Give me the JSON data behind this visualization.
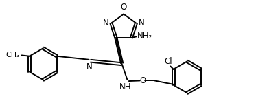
{
  "bg_color": "#ffffff",
  "line_color": "#000000",
  "line_width": 1.4,
  "font_size": 8.5,
  "xlim": [
    -1.5,
    4.2
  ],
  "ylim": [
    -1.1,
    1.2
  ],
  "figsize": [
    3.89,
    1.5
  ],
  "dpi": 100
}
